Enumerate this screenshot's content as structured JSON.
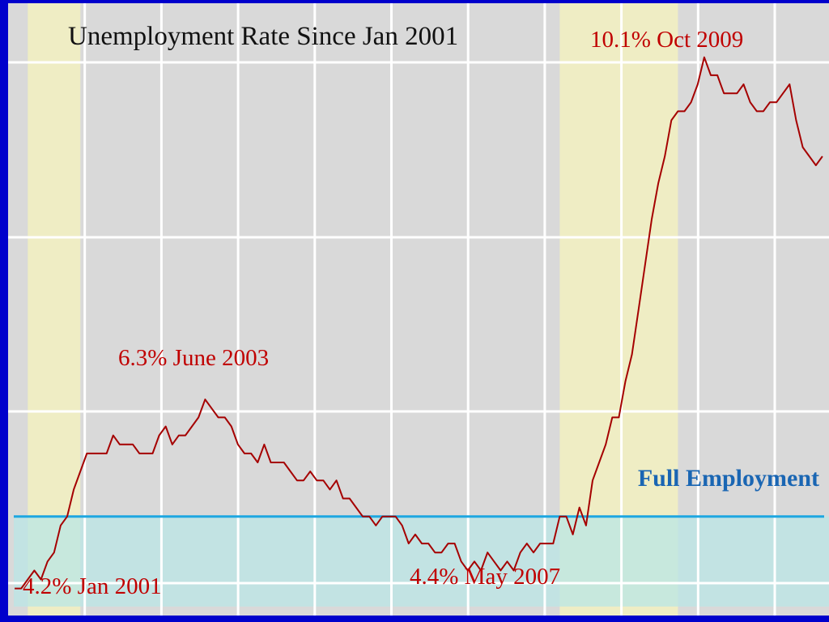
{
  "colors": {
    "frame": "#0000cc",
    "plot_bg": "#d9d9d9",
    "grid": "#ffffff",
    "recession": "#f2f0c0",
    "full_band": "#b9e6e6",
    "full_line": "#1ea7e1",
    "series": "#a50000",
    "title": "#111111",
    "annotation": "#c00000",
    "full_label": "#1a66b3"
  },
  "chart_data": {
    "type": "line",
    "title": "Unemployment Rate Since Jan 2001",
    "xlabel": "",
    "ylabel": "",
    "x_range": [
      "2000-12",
      "2011-05"
    ],
    "ylim": [
      3.9,
      10.7
    ],
    "grid": true,
    "recessions": [
      {
        "start": "2001-03",
        "end": "2001-11"
      },
      {
        "start": "2007-12",
        "end": "2009-06"
      }
    ],
    "full_employment": {
      "label": "Full Employment",
      "value": 5.0,
      "band_min": 4.0
    },
    "annotations": [
      {
        "text": "10.1% Oct 2009",
        "x": "2009-10",
        "y": 10.1
      },
      {
        "text": "6.3% June 2003",
        "x": "2003-06",
        "y": 6.3
      },
      {
        "text": "4.4% May 2007",
        "x": "2007-05",
        "y": 4.4
      },
      {
        "text": "4.2% Jan 2001",
        "x": "2001-01",
        "y": 4.2
      }
    ],
    "series": [
      {
        "x": [
          "2001-01",
          "2001-02",
          "2001-03",
          "2001-04",
          "2001-05",
          "2001-06",
          "2001-07",
          "2001-08",
          "2001-09",
          "2001-10",
          "2001-11",
          "2001-12",
          "2002-01",
          "2002-02",
          "2002-03",
          "2002-04",
          "2002-05",
          "2002-06",
          "2002-07",
          "2002-08",
          "2002-09",
          "2002-10",
          "2002-11",
          "2002-12",
          "2003-01",
          "2003-02",
          "2003-03",
          "2003-04",
          "2003-05",
          "2003-06",
          "2003-07",
          "2003-08",
          "2003-09",
          "2003-10",
          "2003-11",
          "2003-12",
          "2004-01",
          "2004-02",
          "2004-03",
          "2004-04",
          "2004-05",
          "2004-06",
          "2004-07",
          "2004-08",
          "2004-09",
          "2004-10",
          "2004-11",
          "2004-12",
          "2005-01",
          "2005-02",
          "2005-03",
          "2005-04",
          "2005-05",
          "2005-06",
          "2005-07",
          "2005-08",
          "2005-09",
          "2005-10",
          "2005-11",
          "2005-12",
          "2006-01",
          "2006-02",
          "2006-03",
          "2006-04",
          "2006-05",
          "2006-06",
          "2006-07",
          "2006-08",
          "2006-09",
          "2006-10",
          "2006-11",
          "2006-12",
          "2007-01",
          "2007-02",
          "2007-03",
          "2007-04",
          "2007-05",
          "2007-06",
          "2007-07",
          "2007-08",
          "2007-09",
          "2007-10",
          "2007-11",
          "2007-12",
          "2008-01",
          "2008-02",
          "2008-03",
          "2008-04",
          "2008-05",
          "2008-06",
          "2008-07",
          "2008-08",
          "2008-09",
          "2008-10",
          "2008-11",
          "2008-12",
          "2009-01",
          "2009-02",
          "2009-03",
          "2009-04",
          "2009-05",
          "2009-06",
          "2009-07",
          "2009-08",
          "2009-09",
          "2009-10",
          "2009-11",
          "2009-12",
          "2010-01",
          "2010-02",
          "2010-03",
          "2010-04",
          "2010-05",
          "2010-06",
          "2010-07",
          "2010-08",
          "2010-09",
          "2010-10",
          "2010-11",
          "2010-12",
          "2011-01",
          "2011-02",
          "2011-03",
          "2011-04"
        ],
        "values": [
          4.2,
          4.2,
          4.3,
          4.4,
          4.3,
          4.5,
          4.6,
          4.9,
          5.0,
          5.3,
          5.5,
          5.7,
          5.7,
          5.7,
          5.7,
          5.9,
          5.8,
          5.8,
          5.8,
          5.7,
          5.7,
          5.7,
          5.9,
          6.0,
          5.8,
          5.9,
          5.9,
          6.0,
          6.1,
          6.3,
          6.2,
          6.1,
          6.1,
          6.0,
          5.8,
          5.7,
          5.7,
          5.6,
          5.8,
          5.6,
          5.6,
          5.6,
          5.5,
          5.4,
          5.4,
          5.5,
          5.4,
          5.4,
          5.3,
          5.4,
          5.2,
          5.2,
          5.1,
          5.0,
          5.0,
          4.9,
          5.0,
          5.0,
          5.0,
          4.9,
          4.7,
          4.8,
          4.7,
          4.7,
          4.6,
          4.6,
          4.7,
          4.7,
          4.5,
          4.4,
          4.5,
          4.4,
          4.6,
          4.5,
          4.4,
          4.5,
          4.4,
          4.6,
          4.7,
          4.6,
          4.7,
          4.7,
          4.7,
          5.0,
          5.0,
          4.8,
          5.1,
          4.9,
          5.4,
          5.6,
          5.8,
          6.1,
          6.1,
          6.5,
          6.8,
          7.3,
          7.8,
          8.3,
          8.7,
          9.0,
          9.4,
          9.5,
          9.5,
          9.6,
          9.8,
          10.1,
          9.9,
          9.9,
          9.7,
          9.7,
          9.7,
          9.8,
          9.6,
          9.5,
          9.5,
          9.6,
          9.6,
          9.7,
          9.8,
          9.4,
          9.1,
          9.0,
          8.9,
          9.0
        ]
      }
    ]
  }
}
